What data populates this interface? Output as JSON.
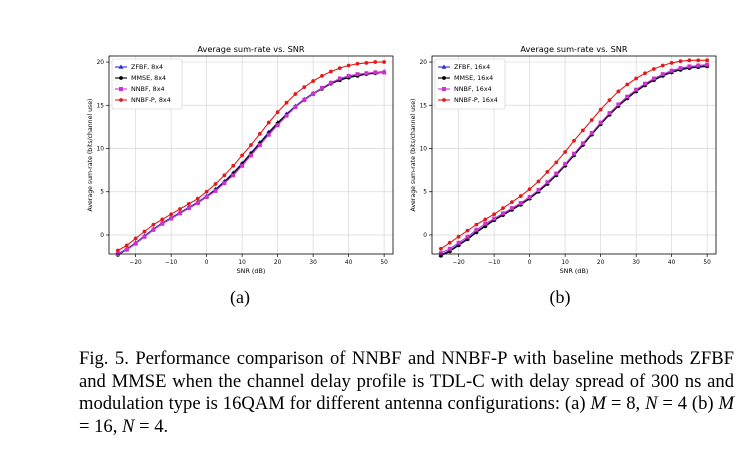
{
  "chart_data": [
    {
      "type": "line",
      "title": "Average sum-rate vs. SNR",
      "xlabel": "SNR (dB)",
      "ylabel": "Average sum-rate (bits/channel use)",
      "xlim": [
        -27.5,
        52.5
      ],
      "ylim": [
        -2.2,
        20.7
      ],
      "xticks": [
        -20,
        -10,
        0,
        10,
        20,
        30,
        40,
        50
      ],
      "yticks": [
        0,
        5,
        10,
        15,
        20
      ],
      "grid": true,
      "legend": "top-left",
      "x": [
        -25,
        -22.5,
        -20,
        -17.5,
        -15,
        -12.5,
        -10,
        -7.5,
        -5,
        -2.5,
        0,
        2.5,
        5,
        7.5,
        10,
        12.5,
        15,
        17.5,
        20,
        22.5,
        25,
        27.5,
        30,
        32.5,
        35,
        37.5,
        40,
        42.5,
        45,
        47.5,
        50
      ],
      "series": [
        {
          "name": "ZFBF, 8x4",
          "color": "#2a2ad6",
          "marker": "triangle",
          "values": [
            -2.2,
            -1.6,
            -0.9,
            -0.1,
            0.7,
            1.4,
            2.0,
            2.6,
            3.2,
            3.8,
            4.5,
            5.3,
            6.2,
            7.2,
            8.3,
            9.5,
            10.7,
            11.9,
            13.0,
            14.0,
            14.9,
            15.7,
            16.4,
            17.0,
            17.6,
            18.0,
            18.3,
            18.5,
            18.7,
            18.8,
            18.9
          ]
        },
        {
          "name": "MMSE, 8x4",
          "color": "#000000",
          "marker": "circle",
          "values": [
            -2.3,
            -1.7,
            -1.0,
            -0.2,
            0.6,
            1.3,
            1.9,
            2.5,
            3.1,
            3.7,
            4.4,
            5.2,
            6.1,
            7.1,
            8.2,
            9.4,
            10.6,
            11.8,
            12.9,
            13.9,
            14.8,
            15.6,
            16.3,
            16.9,
            17.5,
            17.9,
            18.2,
            18.4,
            18.6,
            18.7,
            18.8
          ]
        },
        {
          "name": "NNBF, 8x4",
          "color": "#cc33cc",
          "marker": "square",
          "values": [
            -2.2,
            -1.7,
            -1.0,
            -0.2,
            0.6,
            1.3,
            1.9,
            2.5,
            3.1,
            3.7,
            4.4,
            5.1,
            6.0,
            6.9,
            8.0,
            9.2,
            10.4,
            11.6,
            12.7,
            13.8,
            14.8,
            15.6,
            16.3,
            17.0,
            17.6,
            18.1,
            18.4,
            18.6,
            18.7,
            18.8,
            18.8
          ]
        },
        {
          "name": "NNBF-P, 8x4",
          "color": "#e31a1c",
          "marker": "circle",
          "values": [
            -1.8,
            -1.2,
            -0.4,
            0.4,
            1.2,
            1.8,
            2.4,
            3.0,
            3.6,
            4.2,
            5.0,
            5.9,
            6.9,
            8.0,
            9.2,
            10.4,
            11.7,
            13.0,
            14.2,
            15.3,
            16.3,
            17.1,
            17.8,
            18.4,
            18.9,
            19.3,
            19.6,
            19.8,
            19.9,
            20.0,
            20.0
          ]
        }
      ]
    },
    {
      "type": "line",
      "title": "Average sum-rate vs. SNR",
      "xlabel": "SNR (dB)",
      "ylabel": "Average sum-rate (bits/channel use)",
      "xlim": [
        -27.5,
        52.5
      ],
      "ylim": [
        -2.2,
        20.7
      ],
      "xticks": [
        -20,
        -10,
        0,
        10,
        20,
        30,
        40,
        50
      ],
      "yticks": [
        0,
        5,
        10,
        15,
        20
      ],
      "grid": true,
      "legend": "top-left",
      "x": [
        -25,
        -22.5,
        -20,
        -17.5,
        -15,
        -12.5,
        -10,
        -7.5,
        -5,
        -2.5,
        0,
        2.5,
        5,
        7.5,
        10,
        12.5,
        15,
        17.5,
        20,
        22.5,
        25,
        27.5,
        30,
        32.5,
        35,
        37.5,
        40,
        42.5,
        45,
        47.5,
        50
      ],
      "series": [
        {
          "name": "ZFBF, 16x4",
          "color": "#2a2ad6",
          "marker": "triangle",
          "values": [
            -2.3,
            -1.8,
            -1.1,
            -0.4,
            0.4,
            1.1,
            1.8,
            2.4,
            3.0,
            3.6,
            4.3,
            5.1,
            6.0,
            7.0,
            8.1,
            9.3,
            10.5,
            11.7,
            12.9,
            14.0,
            15.0,
            15.9,
            16.7,
            17.4,
            18.0,
            18.5,
            18.9,
            19.2,
            19.4,
            19.5,
            19.6
          ]
        },
        {
          "name": "MMSE, 16x4",
          "color": "#000000",
          "marker": "circle",
          "values": [
            -2.4,
            -1.9,
            -1.2,
            -0.5,
            0.3,
            1.0,
            1.7,
            2.3,
            2.9,
            3.5,
            4.2,
            5.0,
            5.9,
            6.9,
            8.0,
            9.2,
            10.4,
            11.6,
            12.8,
            13.9,
            14.9,
            15.8,
            16.6,
            17.3,
            17.9,
            18.4,
            18.8,
            19.1,
            19.3,
            19.4,
            19.5
          ]
        },
        {
          "name": "NNBF, 16x4",
          "color": "#cc33cc",
          "marker": "square",
          "values": [
            -2.1,
            -1.6,
            -0.9,
            -0.2,
            0.6,
            1.3,
            1.9,
            2.5,
            3.1,
            3.7,
            4.4,
            5.2,
            6.1,
            7.1,
            8.2,
            9.4,
            10.6,
            11.8,
            13.0,
            14.1,
            15.1,
            16.0,
            16.8,
            17.5,
            18.1,
            18.6,
            19.0,
            19.3,
            19.5,
            19.6,
            19.7
          ]
        },
        {
          "name": "NNBF-P, 16x4",
          "color": "#e31a1c",
          "marker": "circle",
          "values": [
            -1.6,
            -0.9,
            -0.2,
            0.5,
            1.2,
            1.8,
            2.4,
            3.1,
            3.8,
            4.5,
            5.3,
            6.2,
            7.3,
            8.4,
            9.6,
            10.9,
            12.1,
            13.3,
            14.5,
            15.6,
            16.6,
            17.4,
            18.1,
            18.7,
            19.2,
            19.6,
            19.9,
            20.1,
            20.2,
            20.2,
            20.2
          ]
        }
      ]
    }
  ],
  "subfigures": [
    "(a)",
    "(b)"
  ],
  "caption": {
    "prefix": "Fig. 5.   Performance comparison of NNBF and NNBF-P with baseline methods ZFBF and MMSE when the channel delay profile is TDL-C with delay spread of 300 ns and modulation type is 16QAM for different antenna configurations: (a) ",
    "m_a": "M",
    "eq_a1": " = 8, ",
    "n_a": "N",
    "eq_a2": " = 4 (b) ",
    "m_b": "M",
    "eq_b1": " = 16, ",
    "n_b": "N",
    "eq_b2": " = 4."
  }
}
